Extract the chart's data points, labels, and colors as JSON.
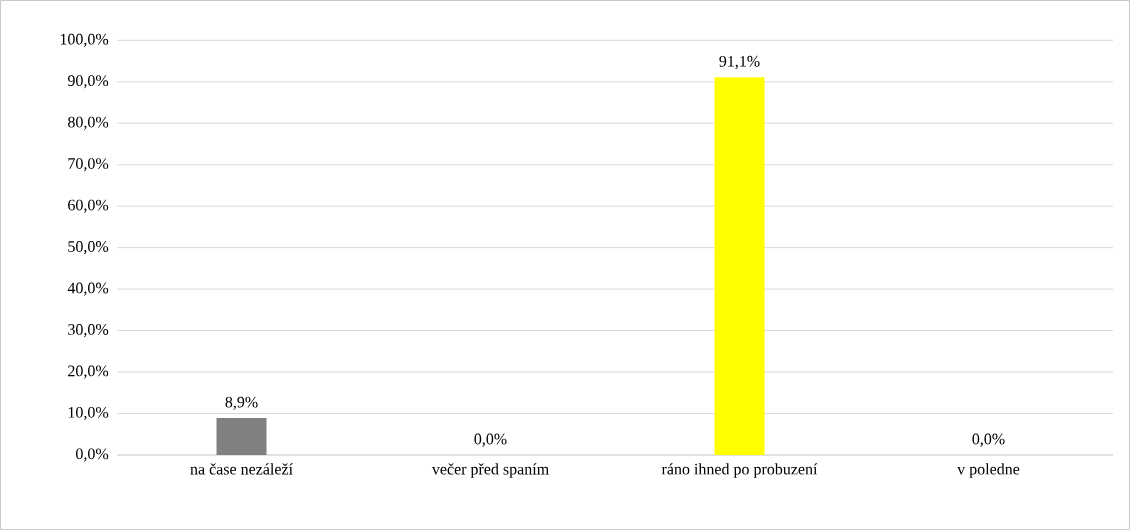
{
  "chart_data": {
    "type": "bar",
    "categories": [
      "na čase nezáleží",
      "večer před spaním",
      "ráno ihned po probuzení",
      "v poledne"
    ],
    "values": [
      8.9,
      0,
      91.1,
      0
    ],
    "colors": [
      "#808080",
      "#808080",
      "#ffff00",
      "#808080"
    ],
    "value_labels": [
      "8,9%",
      "0,0%",
      "91,1%",
      "0,0%"
    ],
    "ylim": [
      0,
      100
    ],
    "yticks": [
      {
        "value": 0,
        "label": "0,0%"
      },
      {
        "value": 10,
        "label": "10,0%"
      },
      {
        "value": 20,
        "label": "20,0%"
      },
      {
        "value": 30,
        "label": "30,0%"
      },
      {
        "value": 40,
        "label": "40,0%"
      },
      {
        "value": 50,
        "label": "50,0%"
      },
      {
        "value": 60,
        "label": "60,0%"
      },
      {
        "value": 70,
        "label": "70,0%"
      },
      {
        "value": 80,
        "label": "80,0%"
      },
      {
        "value": 90,
        "label": "90,0%"
      },
      {
        "value": 100,
        "label": "100,0%"
      }
    ],
    "grid": "y"
  }
}
